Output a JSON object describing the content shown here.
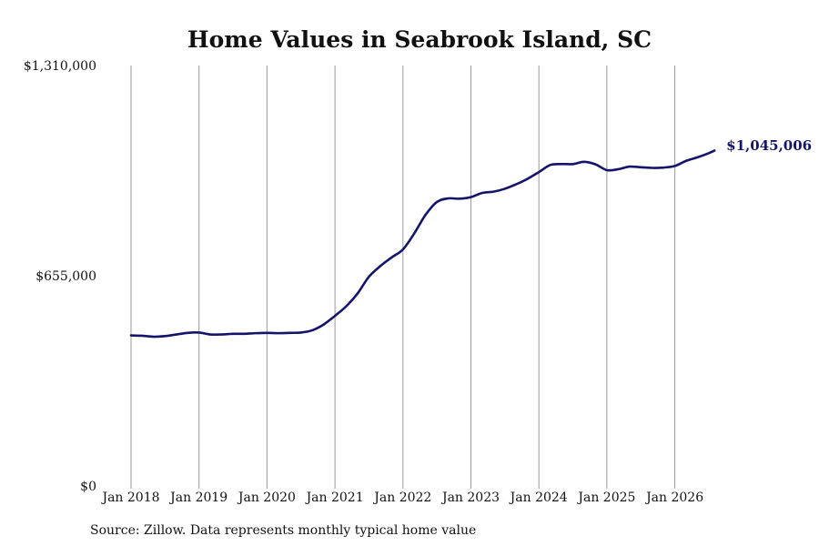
{
  "chart_data": {
    "type": "line",
    "title": "Home Values in Seabrook Island, SC",
    "source": "Source: Zillow. Data represents monthly typical home value",
    "ylim": [
      0,
      1310000
    ],
    "y_ticks": [
      {
        "value": 0,
        "label": "$0"
      },
      {
        "value": 655000,
        "label": "$655,000"
      },
      {
        "value": 1310000,
        "label": "$1,310,000"
      }
    ],
    "x_ticks": [
      {
        "value": "2018-01",
        "label": "Jan 2018"
      },
      {
        "value": "2019-01",
        "label": "Jan 2019"
      },
      {
        "value": "2020-01",
        "label": "Jan 2020"
      },
      {
        "value": "2021-01",
        "label": "Jan 2021"
      },
      {
        "value": "2022-01",
        "label": "Jan 2022"
      },
      {
        "value": "2023-01",
        "label": "Jan 2023"
      },
      {
        "value": "2024-01",
        "label": "Jan 2024"
      },
      {
        "value": "2025-01",
        "label": "Jan 2025"
      },
      {
        "value": "2026-01",
        "label": "Jan 2026"
      }
    ],
    "grid": "vertical",
    "line_color": "#14146b",
    "end_label": "$1,045,006",
    "series": [
      {
        "points": [
          [
            "2018-01",
            469000
          ],
          [
            "2018-03",
            468000
          ],
          [
            "2018-05",
            465000
          ],
          [
            "2018-07",
            467000
          ],
          [
            "2018-09",
            472000
          ],
          [
            "2018-11",
            477000
          ],
          [
            "2019-01",
            478000
          ],
          [
            "2019-03",
            472000
          ],
          [
            "2019-05",
            472000
          ],
          [
            "2019-07",
            474000
          ],
          [
            "2019-09",
            474000
          ],
          [
            "2019-11",
            476000
          ],
          [
            "2020-01",
            477000
          ],
          [
            "2020-03",
            476000
          ],
          [
            "2020-05",
            477000
          ],
          [
            "2020-07",
            478000
          ],
          [
            "2020-09",
            485000
          ],
          [
            "2020-11",
            503000
          ],
          [
            "2021-01",
            530000
          ],
          [
            "2021-03",
            560000
          ],
          [
            "2021-05",
            600000
          ],
          [
            "2021-07",
            652000
          ],
          [
            "2021-09",
            685000
          ],
          [
            "2021-11",
            712000
          ],
          [
            "2022-01",
            737000
          ],
          [
            "2022-03",
            787000
          ],
          [
            "2022-05",
            845000
          ],
          [
            "2022-07",
            885000
          ],
          [
            "2022-09",
            896000
          ],
          [
            "2022-11",
            895000
          ],
          [
            "2023-01",
            900000
          ],
          [
            "2023-03",
            913000
          ],
          [
            "2023-05",
            917000
          ],
          [
            "2023-07",
            926000
          ],
          [
            "2023-09",
            940000
          ],
          [
            "2023-11",
            957000
          ],
          [
            "2024-01",
            978000
          ],
          [
            "2024-03",
            1000000
          ],
          [
            "2024-05",
            1003000
          ],
          [
            "2024-07",
            1003000
          ],
          [
            "2024-09",
            1010000
          ],
          [
            "2024-11",
            1002000
          ],
          [
            "2025-01",
            984000
          ],
          [
            "2025-03",
            987000
          ],
          [
            "2025-05",
            995000
          ],
          [
            "2025-07",
            993000
          ],
          [
            "2025-09",
            991000
          ],
          [
            "2025-11",
            992000
          ],
          [
            "2026-01",
            997000
          ],
          [
            "2026-03",
            1013000
          ],
          [
            "2026-05",
            1024000
          ],
          [
            "2026-07",
            1037000
          ],
          [
            "2026-08",
            1045006
          ]
        ]
      }
    ]
  }
}
